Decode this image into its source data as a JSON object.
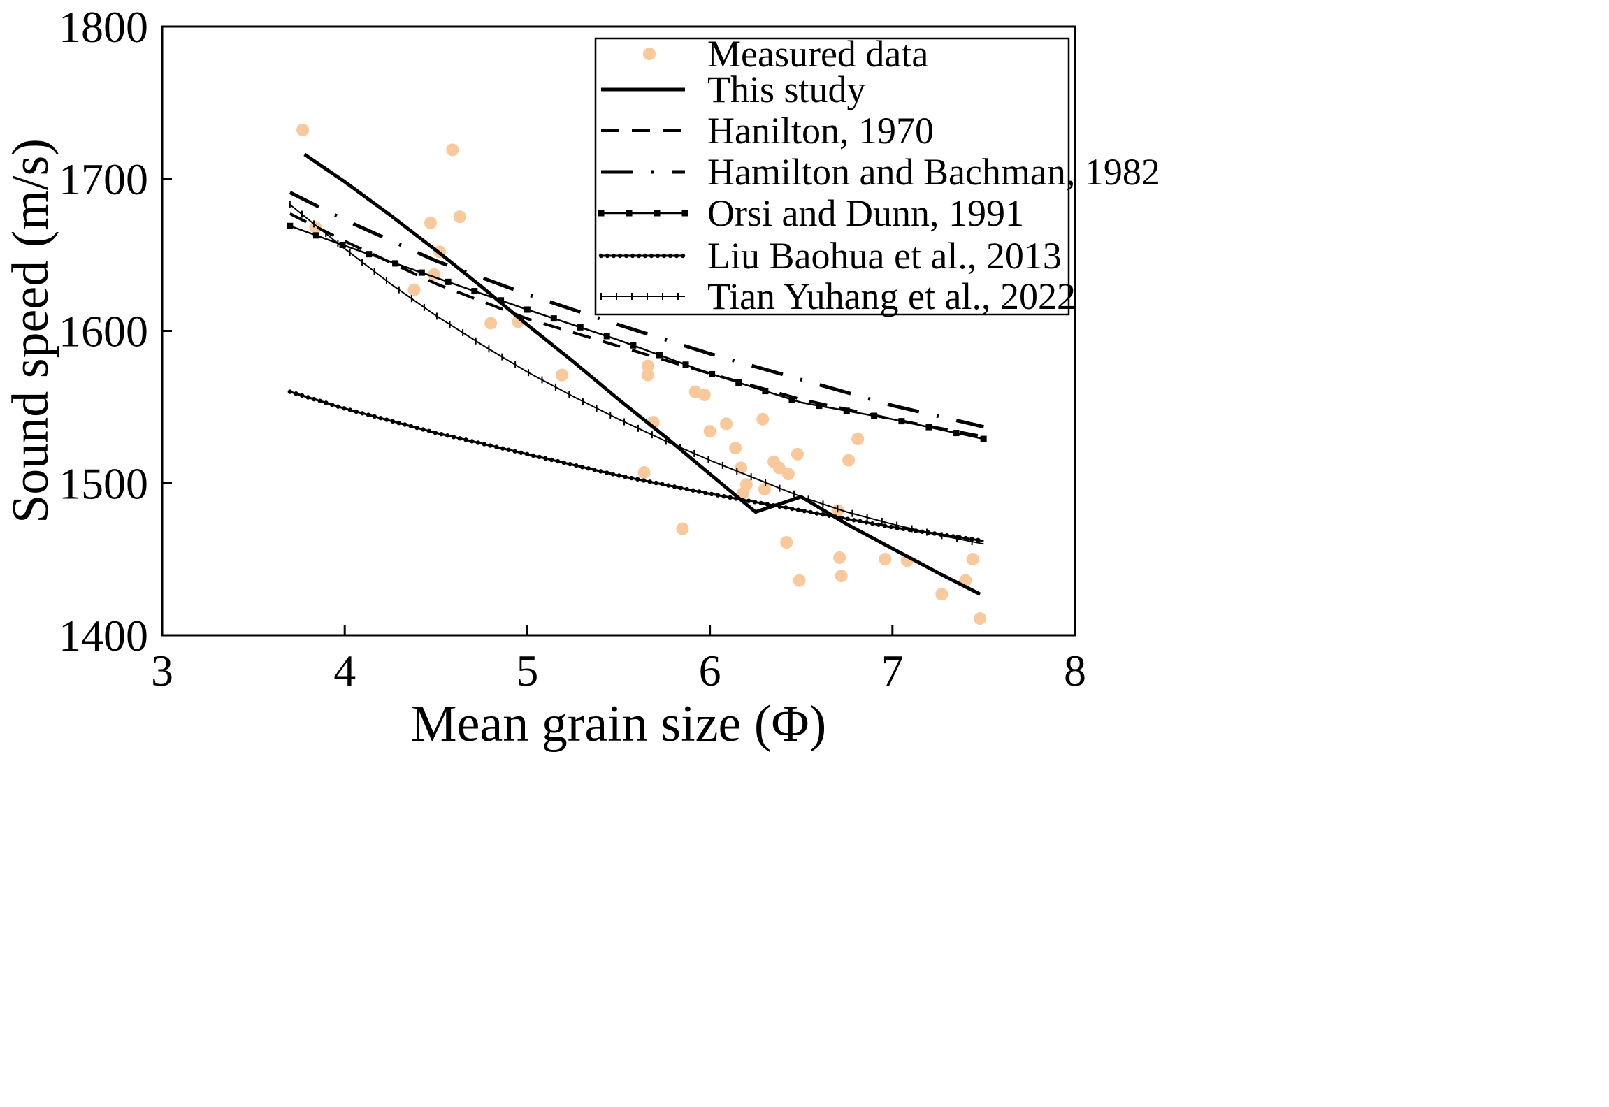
{
  "chart_data": {
    "type": "scatter",
    "title": "",
    "xlabel": "Mean grain size (Φ)",
    "ylabel": "Sound speed (m/s)",
    "xlim": [
      3,
      8
    ],
    "ylim": [
      1400,
      1800
    ],
    "xticks": [
      3,
      4,
      5,
      6,
      7,
      8
    ],
    "yticks": [
      1400,
      1500,
      1600,
      1700,
      1800
    ],
    "grid": false,
    "legend_position": "top-right",
    "colors": {
      "measured": "#f9c89b",
      "line": "#000000"
    },
    "series": [
      {
        "name": "Measured data",
        "kind": "scatter",
        "points": [
          [
            3.77,
            1732
          ],
          [
            3.84,
            1668
          ],
          [
            4.38,
            1627
          ],
          [
            4.47,
            1671
          ],
          [
            4.49,
            1637
          ],
          [
            4.52,
            1652
          ],
          [
            4.59,
            1719
          ],
          [
            4.63,
            1675
          ],
          [
            4.8,
            1605
          ],
          [
            4.95,
            1606
          ],
          [
            5.19,
            1571
          ],
          [
            5.64,
            1507
          ],
          [
            5.66,
            1577
          ],
          [
            5.66,
            1571
          ],
          [
            5.69,
            1540
          ],
          [
            5.85,
            1470
          ],
          [
            5.92,
            1560
          ],
          [
            5.97,
            1558
          ],
          [
            6.0,
            1534
          ],
          [
            6.09,
            1539
          ],
          [
            6.14,
            1523
          ],
          [
            6.17,
            1510
          ],
          [
            6.18,
            1493
          ],
          [
            6.2,
            1499
          ],
          [
            6.29,
            1542
          ],
          [
            6.3,
            1496
          ],
          [
            6.35,
            1514
          ],
          [
            6.38,
            1510
          ],
          [
            6.42,
            1461
          ],
          [
            6.43,
            1506
          ],
          [
            6.48,
            1519
          ],
          [
            6.49,
            1436
          ],
          [
            6.7,
            1482
          ],
          [
            6.71,
            1451
          ],
          [
            6.72,
            1439
          ],
          [
            6.76,
            1515
          ],
          [
            6.81,
            1529
          ],
          [
            6.96,
            1450
          ],
          [
            7.08,
            1449
          ],
          [
            7.27,
            1427
          ],
          [
            7.4,
            1436
          ],
          [
            7.44,
            1450
          ],
          [
            7.48,
            1411
          ]
        ]
      },
      {
        "name": "This study",
        "kind": "line",
        "style": "solid",
        "x": [
          3.78,
          4.0,
          4.25,
          4.5,
          4.75,
          5.0,
          5.25,
          5.5,
          5.75,
          6.0,
          6.25,
          6.5,
          6.75,
          7.0,
          7.25,
          7.48
        ],
        "y": [
          1716,
          1698,
          1676,
          1653,
          1629,
          1604,
          1580,
          1555,
          1531,
          1506,
          1481,
          1491,
          1473,
          1457,
          1441,
          1427
        ]
      },
      {
        "name": "Hanilton, 1970",
        "kind": "line",
        "style": "dashed",
        "x": [
          3.7,
          4.0,
          4.5,
          5.0,
          5.5,
          6.0,
          6.5,
          7.0,
          7.48
        ],
        "y": [
          1677,
          1659,
          1631,
          1608,
          1590,
          1572,
          1555,
          1542,
          1531
        ]
      },
      {
        "name": "Hamilton and Bachman, 1982",
        "kind": "line",
        "style": "dash-dot",
        "x": [
          3.7,
          4.0,
          4.5,
          5.0,
          5.5,
          6.0,
          6.5,
          7.0,
          7.5
        ],
        "y": [
          1691,
          1673,
          1646,
          1624,
          1604,
          1585,
          1568,
          1551,
          1537
        ]
      },
      {
        "name": "Orsi and Dunn, 1991",
        "kind": "line",
        "style": "solid-square-markers",
        "x": [
          3.7,
          4.0,
          4.5,
          5.0,
          5.5,
          6.0,
          6.5,
          7.0,
          7.5
        ],
        "y": [
          1669,
          1656,
          1635,
          1614,
          1594,
          1572,
          1553,
          1542,
          1529
        ]
      },
      {
        "name": "Liu Baohua et al., 2013",
        "kind": "line",
        "style": "solid-dense-markers",
        "x": [
          3.7,
          4.0,
          4.5,
          5.0,
          5.5,
          6.0,
          6.5,
          7.0,
          7.5
        ],
        "y": [
          1560,
          1549,
          1533,
          1519,
          1505,
          1493,
          1482,
          1471,
          1462
        ]
      },
      {
        "name": "Tian Yuhang et al., 2022",
        "kind": "line",
        "style": "solid-plus-markers",
        "x": [
          3.7,
          4.0,
          4.25,
          4.5,
          4.75,
          5.0,
          5.25,
          5.5,
          5.75,
          6.0,
          6.25,
          6.5,
          6.75,
          7.0,
          7.25,
          7.5
        ],
        "y": [
          1683,
          1654,
          1631,
          1610,
          1591,
          1573,
          1557,
          1542,
          1528,
          1515,
          1503,
          1491,
          1481,
          1473,
          1466,
          1460
        ]
      }
    ]
  }
}
